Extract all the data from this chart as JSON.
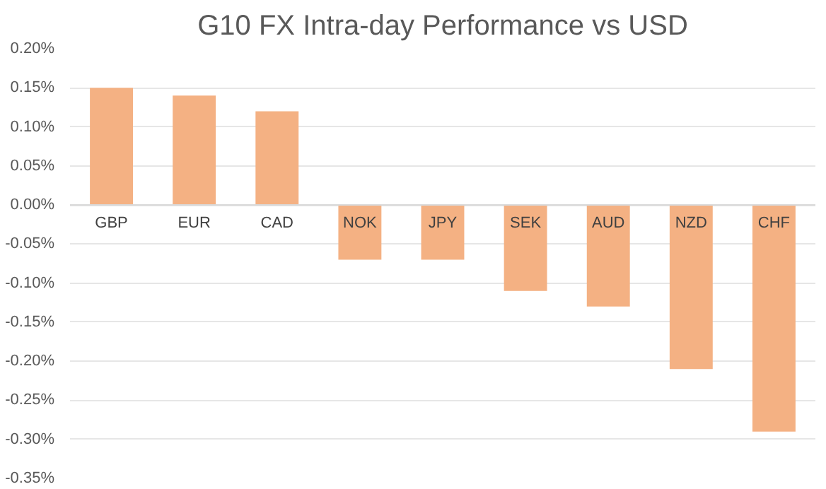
{
  "chart_data": {
    "type": "bar",
    "title": "G10 FX Intra-day Performance vs USD",
    "categories": [
      "GBP",
      "EUR",
      "CAD",
      "NOK",
      "JPY",
      "SEK",
      "AUD",
      "NZD",
      "CHF"
    ],
    "values": [
      0.15,
      0.14,
      0.12,
      -0.07,
      -0.07,
      -0.11,
      -0.13,
      -0.21,
      -0.29
    ],
    "color": "#f4b183",
    "ylim": [
      -0.35,
      0.2
    ],
    "yticks": [
      {
        "value": 0.2,
        "label": "0.20%"
      },
      {
        "value": 0.15,
        "label": "0.15%"
      },
      {
        "value": 0.1,
        "label": "0.10%"
      },
      {
        "value": 0.05,
        "label": "0.05%"
      },
      {
        "value": 0,
        "label": "0.00%"
      },
      {
        "value": -0.05,
        "label": "-0.05%"
      },
      {
        "value": -0.1,
        "label": "-0.10%"
      },
      {
        "value": -0.15,
        "label": "-0.15%"
      },
      {
        "value": -0.2,
        "label": "-0.20%"
      },
      {
        "value": -0.25,
        "label": "-0.25%"
      },
      {
        "value": -0.3,
        "label": "-0.30%"
      },
      {
        "value": -0.35,
        "label": "-0.35%"
      }
    ],
    "grid": "y"
  }
}
